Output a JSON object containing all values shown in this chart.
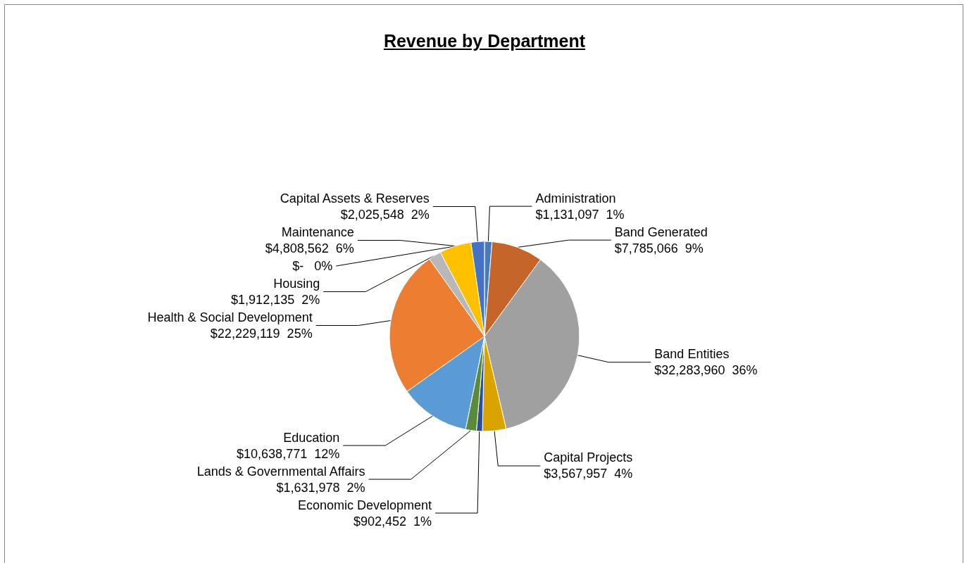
{
  "chart_data": {
    "type": "pie",
    "title": "Revenue by Department",
    "categories": [
      null,
      "Administration",
      "Band Generated",
      "Band Entities",
      "Capital Projects",
      "Economic Development",
      "Lands & Governmental Affairs",
      "Education",
      "Health & Social Development",
      "Housing",
      "Maintenance",
      "Capital Assets & Reserves"
    ],
    "values": [
      0,
      1131097,
      7785066,
      32283960,
      3567957,
      902452,
      1631978,
      10638771,
      22229119,
      1912135,
      4808562,
      2025548
    ],
    "value_labels": [
      "$-   0%",
      "$1,131,097  1%",
      "$7,785,066  9%",
      "$32,283,960  36%",
      "$3,567,957  4%",
      "$902,452  1%",
      "$1,631,978  2%",
      "$10,638,771  12%",
      "$22,229,119  25%",
      "$1,912,135  2%",
      "$4,808,562  6%",
      "$2,025,548  2%"
    ],
    "colors": [
      "#264478",
      "#4a7ab8",
      "#c5652a",
      "#a0a0a0",
      "#d9a300",
      "#2d4e9c",
      "#5a8a3a",
      "#5b9bd5",
      "#ed7d31",
      "#b8b8b8",
      "#ffc000",
      "#4472c4"
    ],
    "legend": false
  }
}
